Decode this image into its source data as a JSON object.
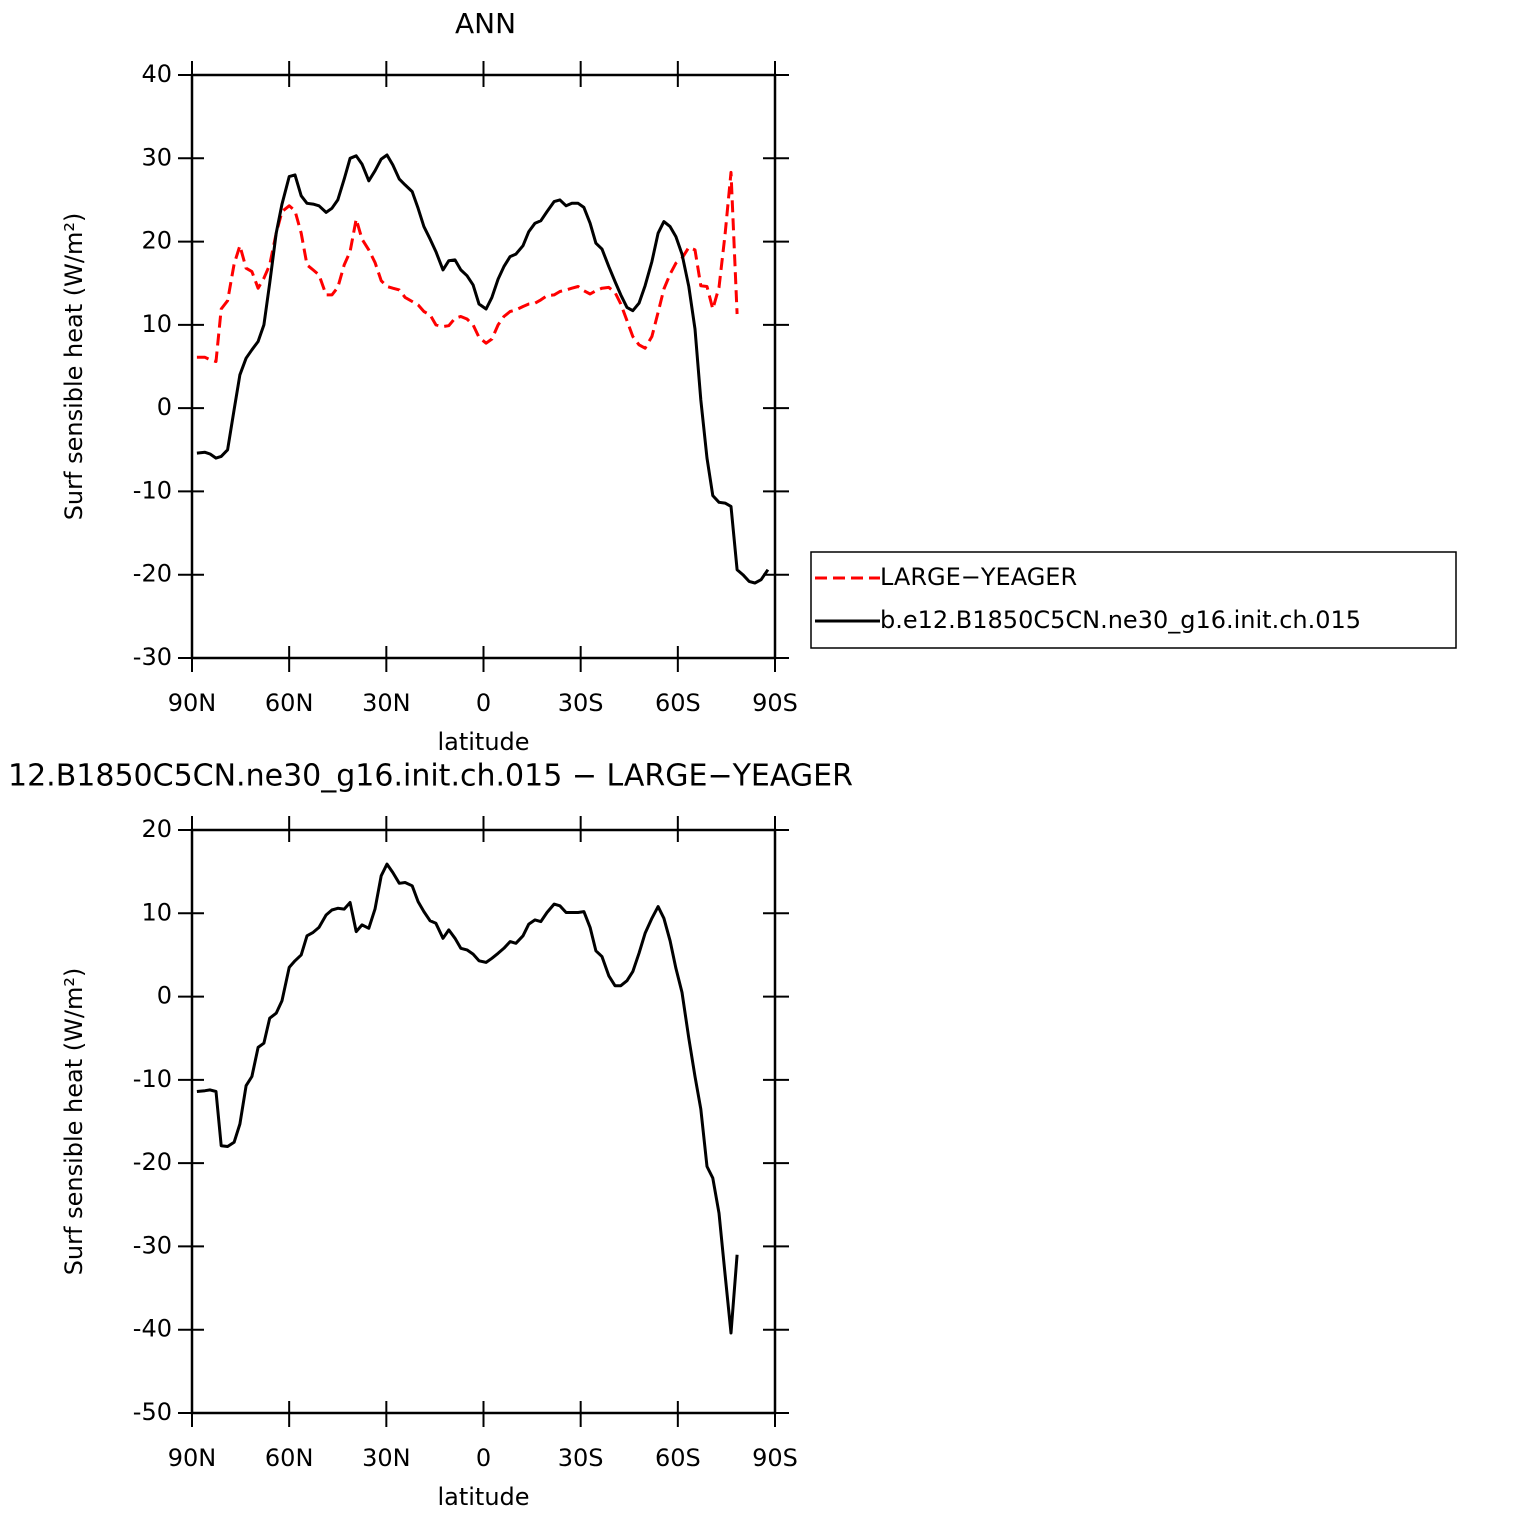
{
  "chart_data": [
    {
      "type": "line",
      "title": "ANN",
      "xlabel": "latitude",
      "ylabel": "Surf sensible heat (W/m²)",
      "xlim": [
        90,
        -90
      ],
      "xticks": [
        {
          "value": 90,
          "label": "90N"
        },
        {
          "value": 60,
          "label": "60N"
        },
        {
          "value": 30,
          "label": "30N"
        },
        0,
        {
          "value": -30,
          "label": "30S"
        },
        {
          "value": -60,
          "label": "60S"
        },
        {
          "value": -90,
          "label": "90S"
        }
      ],
      "ylim": [
        -30,
        40
      ],
      "yticks": [
        -30,
        -20,
        -10,
        0,
        10,
        20,
        30,
        40
      ],
      "legend": "right",
      "x": [
        88.5,
        86,
        84.4,
        82.6,
        81,
        79,
        77,
        75.2,
        73.3,
        71.5,
        69.6,
        67.8,
        66,
        64,
        62.2,
        60,
        58.2,
        56.3,
        54.5,
        52.6,
        50.8,
        48.6,
        46.8,
        45,
        43,
        41.2,
        39.3,
        37.5,
        35.4,
        33.5,
        31.6,
        29.8,
        28,
        26,
        24.2,
        22,
        20.2,
        18.4,
        16.5,
        14.7,
        12.5,
        10.7,
        8.8,
        7,
        5.1,
        3.2,
        1.4,
        -0.8,
        -2.6,
        -4.5,
        -6.3,
        -8.2,
        -10,
        -12.2,
        -14,
        -15.9,
        -17.7,
        -19.6,
        -21.8,
        -23.6,
        -25.5,
        -27.3,
        -29.2,
        -31,
        -32.9,
        -34.7,
        -36.6,
        -38.7,
        -40.6,
        -42.4,
        -44.3,
        -46.1,
        -48,
        -49.9,
        -52,
        -53.9,
        -55.7,
        -57.6,
        -59.4,
        -61.3,
        -63.4,
        -65.3,
        -67.1,
        -69,
        -70.8,
        -72.7,
        -74.6,
        -76.4,
        -78.3,
        -80.1,
        -82,
        -83.8,
        -85.7,
        -87.8
      ],
      "series": [
        {
          "name": "LARGE−YEAGER",
          "color": "#ff0000",
          "linestyle": "dashed",
          "values": [
            6.1,
            6.1,
            5.8,
            5.6,
            11.9,
            12.9,
            17.3,
            19.5,
            16.8,
            16.4,
            14.4,
            15.6,
            17.2,
            21.0,
            23.6,
            24.3,
            23.7,
            21.0,
            17.2,
            16.6,
            16.0,
            13.6,
            13.6,
            14.5,
            17.2,
            18.8,
            22.7,
            20.3,
            19.0,
            17.5,
            15.3,
            14.6,
            14.4,
            14.2,
            13.3,
            12.8,
            12.4,
            11.6,
            11.2,
            10.0,
            9.8,
            9.9,
            10.8,
            11.0,
            10.7,
            10.0,
            8.5,
            7.8,
            8.3,
            10.0,
            11.0,
            11.6,
            11.8,
            12.2,
            12.5,
            12.6,
            13.0,
            13.5,
            13.6,
            14.0,
            14.2,
            14.4,
            14.6,
            14.1,
            13.7,
            14.1,
            14.4,
            14.5,
            13.9,
            12.5,
            10.5,
            8.6,
            7.6,
            7.2,
            8.6,
            11.5,
            14.3,
            16.1,
            17.4,
            18.0,
            19.3,
            19.0,
            14.7,
            14.6,
            11.9,
            14.5,
            20.9,
            28.3,
            11.3,
            null,
            null,
            null,
            null,
            null
          ]
        },
        {
          "name": "b.e12.B1850C5CN.ne30_g16.init.ch.015",
          "color": "#000000",
          "linestyle": "solid",
          "values": [
            -5.4,
            -5.3,
            -5.5,
            -6.0,
            -5.8,
            -5.0,
            -0.2,
            4.0,
            6.0,
            7.0,
            8.0,
            10,
            15,
            21,
            24.5,
            27.8,
            28.0,
            25.5,
            24.6,
            24.5,
            24.3,
            23.5,
            24.0,
            25.0,
            27.5,
            30.0,
            30.3,
            29.3,
            27.3,
            28.5,
            29.9,
            30.4,
            29.2,
            27.5,
            26.8,
            26.0,
            24,
            21.8,
            20.3,
            18.8,
            16.6,
            17.7,
            17.8,
            16.6,
            15.9,
            14.8,
            12.5,
            11.9,
            13.3,
            15.5,
            17.0,
            18.2,
            18.5,
            19.5,
            21.2,
            22.2,
            22.5,
            23.6,
            24.8,
            25.0,
            24.3,
            24.6,
            24.6,
            24.1,
            22.2,
            19.8,
            19.1,
            17.0,
            15.2,
            13.6,
            12.1,
            11.7,
            12.6,
            14.7,
            17.6,
            21.0,
            22.4,
            21.8,
            20.6,
            18.5,
            14.6,
            9.5,
            1.0,
            -6.0,
            -10.5,
            -11.3,
            -11.4,
            -11.8,
            -19.4,
            -20.0,
            -20.8,
            -21.0,
            -20.6,
            -19.4
          ]
        }
      ]
    },
    {
      "type": "line",
      "title": "12.B1850C5CN.ne30_g16.init.ch.015 − LARGE−YEAGER",
      "xlabel": "latitude",
      "ylabel": "Surf sensible heat (W/m²)",
      "xlim": [
        90,
        -90
      ],
      "xticks": [
        {
          "value": 90,
          "label": "90N"
        },
        {
          "value": 60,
          "label": "60N"
        },
        {
          "value": 30,
          "label": "30N"
        },
        0,
        {
          "value": -30,
          "label": "30S"
        },
        {
          "value": -60,
          "label": "60S"
        },
        {
          "value": -90,
          "label": "90S"
        }
      ],
      "ylim": [
        -50,
        20
      ],
      "yticks": [
        -50,
        -40,
        -30,
        -20,
        -10,
        0,
        10,
        20
      ],
      "x": [
        88.5,
        86,
        84.4,
        82.6,
        81,
        79,
        77,
        75.2,
        73.3,
        71.5,
        69.6,
        67.8,
        66,
        64,
        62.2,
        60,
        58.2,
        56.3,
        54.5,
        52.6,
        50.8,
        48.6,
        46.8,
        45,
        43,
        41.2,
        39.3,
        37.5,
        35.4,
        33.5,
        31.6,
        29.8,
        28,
        26,
        24.2,
        22,
        20.2,
        18.4,
        16.5,
        14.7,
        12.5,
        10.7,
        8.8,
        7,
        5.1,
        3.2,
        1.4,
        -0.8,
        -2.6,
        -4.5,
        -6.3,
        -8.2,
        -10,
        -12.2,
        -14,
        -15.9,
        -17.7,
        -19.6,
        -21.8,
        -23.6,
        -25.5,
        -27.3,
        -29.2,
        -31,
        -32.9,
        -34.7,
        -36.6,
        -38.7,
        -40.6,
        -42.4,
        -44.3,
        -46.1,
        -48,
        -49.9,
        -52,
        -53.9,
        -55.7,
        -57.6,
        -59.4,
        -61.3,
        -63.4,
        -65.3,
        -67.1,
        -69,
        -70.8,
        -72.7,
        -74.6,
        -76.4,
        -78.3,
        -80.1,
        -82,
        -83.8,
        -85.7,
        -87.8
      ],
      "series": [
        {
          "color": "#000000",
          "linestyle": "solid",
          "values": [
            -11.4,
            -11.3,
            -11.2,
            -11.4,
            -17.9,
            -18.0,
            -17.5,
            -15.3,
            -10.7,
            -9.6,
            -6.1,
            -5.6,
            -2.6,
            -2.0,
            -0.5,
            3.5,
            4.3,
            5.0,
            7.3,
            7.7,
            8.3,
            9.8,
            10.4,
            10.6,
            10.5,
            11.3,
            7.8,
            8.6,
            8.2,
            10.5,
            14.5,
            15.9,
            14.9,
            13.6,
            13.7,
            13.3,
            11.4,
            10.2,
            9.1,
            8.8,
            7.0,
            8.0,
            7.0,
            5.8,
            5.6,
            5.1,
            4.3,
            4.1,
            4.6,
            5.2,
            5.8,
            6.6,
            6.4,
            7.3,
            8.7,
            9.2,
            9.0,
            10.1,
            11.1,
            10.9,
            10.1,
            10.1,
            10.1,
            10.2,
            8.3,
            5.5,
            4.8,
            2.5,
            1.3,
            1.3,
            1.9,
            3.0,
            5.2,
            7.6,
            9.4,
            10.8,
            9.4,
            6.7,
            3.4,
            0.5,
            -5.0,
            -9.6,
            -13.5,
            -20.4,
            -21.8,
            -26.0,
            -33.4,
            -40.4,
            -31.0,
            null,
            null,
            null,
            null,
            null
          ]
        }
      ]
    }
  ]
}
